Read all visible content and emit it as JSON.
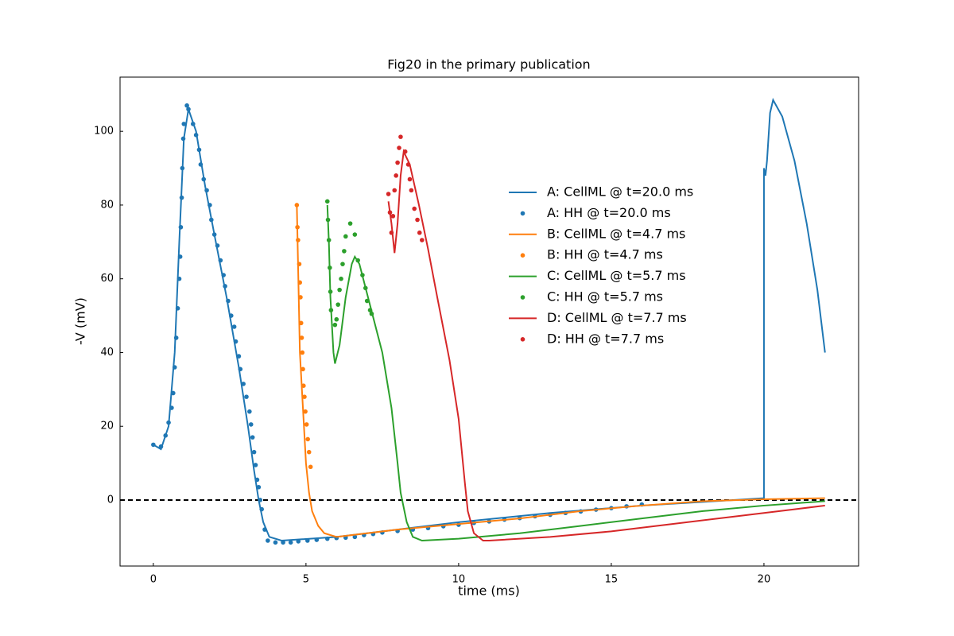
{
  "chart_data": {
    "type": "line",
    "title": "Fig20 in the primary publication",
    "x_label": "time (ms)",
    "y_label": "-V (mV)",
    "xlim": [
      -1.09,
      23.1
    ],
    "ylim": [
      -17.9,
      114.7
    ],
    "xticks": [
      0,
      5,
      10,
      15,
      20
    ],
    "yticks": [
      0,
      20,
      40,
      60,
      80,
      100
    ],
    "reference_line": {
      "y": 0,
      "color": "#000000",
      "dashed": true
    },
    "legend": "center right",
    "series": [
      {
        "name": "A: CellML @ t=20.0 ms",
        "kind": "line",
        "color": "#1f77b4",
        "x": [
          0,
          0.25,
          0.5,
          0.7,
          0.85,
          1.0,
          1.15,
          1.4,
          1.7,
          2.0,
          2.4,
          2.8,
          3.1,
          3.3,
          3.45,
          3.6,
          3.8,
          4.2,
          6,
          8,
          10,
          13,
          16,
          19,
          20,
          20,
          20.05,
          20.1,
          20.2,
          20.3,
          20.6,
          21.0,
          21.4,
          21.75,
          22
        ],
        "values": [
          15,
          13.8,
          20,
          40,
          70,
          98,
          106,
          100,
          85,
          72,
          55,
          36,
          20,
          8,
          0,
          -6,
          -10,
          -11,
          -10,
          -8,
          -6,
          -3.5,
          -1.5,
          0,
          0.5,
          90,
          88,
          92,
          105,
          108.5,
          104,
          92,
          75,
          57,
          40
        ]
      },
      {
        "name": "A: HH @ t=20.0 ms",
        "kind": "scatter",
        "color": "#1f77b4",
        "x": [
          0,
          0.25,
          0.4,
          0.5,
          0.6,
          0.65,
          0.7,
          0.75,
          0.8,
          0.85,
          0.88,
          0.9,
          0.93,
          0.95,
          0.98,
          1.0,
          1.1,
          1.15,
          1.3,
          1.4,
          1.5,
          1.55,
          1.65,
          1.75,
          1.85,
          1.9,
          2.0,
          2.1,
          2.2,
          2.3,
          2.35,
          2.45,
          2.55,
          2.65,
          2.7,
          2.8,
          2.85,
          2.95,
          3.05,
          3.15,
          3.2,
          3.25,
          3.3,
          3.35,
          3.4,
          3.45,
          3.5,
          3.55,
          3.65,
          3.75,
          4.0,
          4.25,
          4.5,
          4.75,
          5.05,
          5.35,
          5.7,
          6.0,
          6.3,
          6.6,
          6.9,
          7.2,
          7.5,
          8.0,
          8.5,
          9.0,
          9.5,
          10.0,
          10.5,
          11.0,
          11.5,
          12.0,
          12.5,
          13.0,
          13.5,
          14.0,
          14.5,
          15.0,
          15.5,
          16.0
        ],
        "values": [
          15,
          14.5,
          17.5,
          21,
          25,
          29,
          36,
          44,
          52,
          60,
          66,
          74,
          82,
          90,
          98,
          102,
          107,
          106,
          102,
          99,
          95,
          91,
          87,
          84,
          80,
          76,
          72,
          69,
          65,
          61,
          58,
          54,
          50,
          47,
          43,
          39,
          35.5,
          31.5,
          28,
          24,
          20.5,
          17,
          13,
          9.5,
          5.5,
          3.5,
          0,
          -2.5,
          -8,
          -11,
          -11.5,
          -11.5,
          -11.5,
          -11.2,
          -11,
          -10.8,
          -10.5,
          -10.3,
          -10.2,
          -10,
          -9.5,
          -9.2,
          -8.8,
          -8.4,
          -8.0,
          -7.6,
          -7.1,
          -6.7,
          -6.2,
          -5.8,
          -5.3,
          -4.9,
          -4.4,
          -4.0,
          -3.5,
          -3.1,
          -2.6,
          -2.2,
          -1.7,
          -1.2
        ]
      },
      {
        "name": "B: CellML @ t=4.7 ms",
        "kind": "line",
        "color": "#ff7f0e",
        "x": [
          4.7,
          4.75,
          4.8,
          4.9,
          5.0,
          5.1,
          5.2,
          5.4,
          5.6,
          6.0,
          8,
          10,
          12,
          14,
          16,
          18,
          20,
          22
        ],
        "values": [
          80,
          60,
          40,
          25,
          10,
          2,
          -3,
          -7,
          -9,
          -10,
          -8,
          -6.5,
          -5,
          -3,
          -1.5,
          -0.3,
          0.2,
          0.5
        ]
      },
      {
        "name": "B: HH @ t=4.7 ms",
        "kind": "scatter",
        "color": "#ff7f0e",
        "x": [
          4.7,
          4.72,
          4.74,
          4.78,
          4.8,
          4.82,
          4.84,
          4.86,
          4.88,
          4.9,
          4.92,
          4.95,
          4.98,
          5.02,
          5.06,
          5.1,
          5.15
        ],
        "values": [
          80,
          74,
          70.5,
          64,
          59,
          55,
          48,
          44,
          40,
          35.5,
          31,
          28,
          24,
          20.5,
          16.5,
          13,
          9
        ]
      },
      {
        "name": "C: CellML @ t=5.7 ms",
        "kind": "line",
        "color": "#2ca02c",
        "x": [
          5.7,
          5.75,
          5.8,
          5.9,
          5.95,
          6.1,
          6.3,
          6.5,
          6.6,
          6.75,
          7.0,
          7.5,
          7.8,
          8.0,
          8.1,
          8.3,
          8.5,
          8.8,
          10,
          12,
          14,
          16,
          18,
          20,
          22
        ],
        "values": [
          80,
          70,
          55,
          40,
          37,
          42,
          55,
          64,
          66,
          64,
          56,
          40,
          25,
          10,
          2,
          -6,
          -10,
          -11,
          -10.5,
          -9,
          -7,
          -5,
          -3,
          -1.5,
          -0.3
        ]
      },
      {
        "name": "C: HH @ t=5.7 ms",
        "kind": "scatter",
        "color": "#2ca02c",
        "x": [
          5.7,
          5.72,
          5.75,
          5.78,
          5.8,
          5.82,
          5.95,
          6.0,
          6.05,
          6.1,
          6.15,
          6.2,
          6.25,
          6.3,
          6.45,
          6.6,
          6.7,
          6.85,
          6.95,
          7.0,
          7.1,
          7.15
        ],
        "values": [
          81,
          76,
          70.5,
          63,
          56.5,
          51.5,
          47.5,
          49,
          53,
          57,
          60,
          64,
          67.5,
          71.5,
          75,
          72,
          65,
          61,
          57.5,
          54,
          51.5,
          50.5
        ]
      },
      {
        "name": "D: CellML @ t=7.7 ms",
        "kind": "line",
        "color": "#d62728",
        "x": [
          7.7,
          7.8,
          7.9,
          8.0,
          8.1,
          8.2,
          8.4,
          8.7,
          9.0,
          9.3,
          9.7,
          10.0,
          10.2,
          10.3,
          10.5,
          10.8,
          11,
          13,
          15,
          17,
          19,
          21,
          22
        ],
        "values": [
          81,
          75,
          67,
          75,
          88,
          94.5,
          91,
          80,
          68,
          55,
          38,
          22,
          5,
          -3,
          -9,
          -11,
          -11,
          -10,
          -8.5,
          -6.5,
          -4.5,
          -2.5,
          -1.5
        ]
      },
      {
        "name": "D: HH @ t=7.7 ms",
        "kind": "scatter",
        "color": "#d62728",
        "x": [
          7.7,
          7.75,
          7.8,
          7.85,
          7.9,
          7.95,
          8.0,
          8.05,
          8.1,
          8.25,
          8.35,
          8.4,
          8.45,
          8.55,
          8.65,
          8.72,
          8.8
        ],
        "values": [
          83,
          78,
          72.5,
          77,
          84,
          88,
          91.5,
          95.5,
          98.5,
          94.5,
          91,
          87,
          84,
          79,
          76,
          72.5,
          70.5
        ]
      }
    ]
  }
}
